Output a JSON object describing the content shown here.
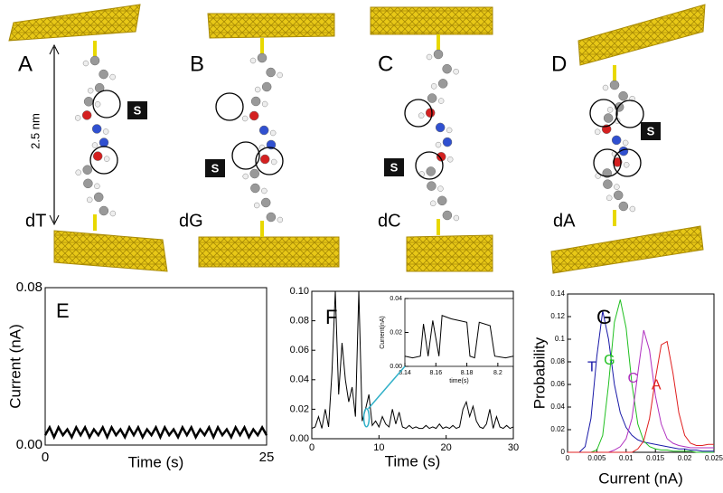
{
  "panels": [
    {
      "label": "A",
      "base": "dT",
      "s_label": "S"
    },
    {
      "label": "B",
      "base": "dG",
      "s_label": "S"
    },
    {
      "label": "C",
      "base": "dC",
      "s_label": "S"
    },
    {
      "label": "D",
      "base": "dA",
      "s_label": "S"
    }
  ],
  "scale_label": "2.5 nm",
  "chart_data": [
    {
      "type": "line",
      "label": "E",
      "xlabel": "Time (s)",
      "ylabel": "Current (nA)",
      "xlim": [
        0,
        25
      ],
      "ylim": [
        0,
        0.08
      ],
      "xticks": [
        0,
        25
      ],
      "yticks": [
        {
          "value": 0,
          "label": "0.00"
        },
        {
          "value": 0.08,
          "label": "0.08"
        }
      ],
      "x": [
        0,
        0.5,
        1,
        1.5,
        2,
        2.5,
        3,
        3.5,
        4,
        4.5,
        5,
        5.5,
        6,
        6.5,
        7,
        7.5,
        8,
        8.5,
        9,
        9.5,
        10,
        10.5,
        11,
        11.5,
        12,
        12.5,
        13,
        13.5,
        14,
        14.5,
        15,
        15.5,
        16,
        16.5,
        17,
        17.5,
        18,
        18.5,
        19,
        19.5,
        20,
        20.5,
        21,
        21.5,
        22,
        22.5,
        23,
        23.5,
        24,
        24.5,
        25
      ],
      "series": [
        {
          "color": "#000000",
          "values": [
            0.005,
            0.009,
            0.004,
            0.009,
            0.005,
            0.008,
            0.004,
            0.009,
            0.005,
            0.009,
            0.004,
            0.008,
            0.005,
            0.009,
            0.004,
            0.009,
            0.005,
            0.008,
            0.004,
            0.009,
            0.005,
            0.009,
            0.004,
            0.008,
            0.005,
            0.009,
            0.004,
            0.009,
            0.005,
            0.008,
            0.004,
            0.009,
            0.005,
            0.009,
            0.004,
            0.008,
            0.005,
            0.009,
            0.004,
            0.009,
            0.005,
            0.008,
            0.004,
            0.009,
            0.005,
            0.009,
            0.004,
            0.008,
            0.005,
            0.009,
            0.005
          ]
        }
      ]
    },
    {
      "type": "line",
      "label": "F",
      "xlabel": "Time (s)",
      "xlim": [
        0,
        30
      ],
      "ylim": [
        0,
        0.1
      ],
      "xticks": [
        0,
        10,
        20,
        30
      ],
      "yticks": [
        {
          "value": 0,
          "label": "0.00"
        },
        {
          "value": 0.02,
          "label": "0.02"
        },
        {
          "value": 0.04,
          "label": "0.04"
        },
        {
          "value": 0.06,
          "label": "0.06"
        },
        {
          "value": 0.08,
          "label": "0.08"
        },
        {
          "value": 0.1,
          "label": "0.10"
        }
      ],
      "x": [
        0,
        0.5,
        1,
        1.5,
        2,
        2.5,
        3,
        3.5,
        4,
        4.5,
        5,
        5.5,
        6,
        6.5,
        7,
        7.5,
        8,
        8.5,
        9,
        9.5,
        10,
        10.5,
        11,
        11.5,
        12,
        12.5,
        13,
        13.5,
        14,
        14.5,
        15,
        15.5,
        16,
        16.5,
        17,
        17.5,
        18,
        18.5,
        19,
        19.5,
        20,
        20.5,
        21,
        21.5,
        22,
        22.5,
        23,
        23.5,
        24,
        24.5,
        25,
        25.5,
        26,
        26.5,
        27,
        27.5,
        28,
        28.5,
        29,
        29.5,
        30
      ],
      "series": [
        {
          "color": "#000000",
          "values": [
            0.007,
            0.008,
            0.015,
            0.007,
            0.02,
            0.008,
            0.045,
            0.1,
            0.03,
            0.065,
            0.04,
            0.025,
            0.035,
            0.015,
            0.1,
            0.012,
            0.02,
            0.03,
            0.009,
            0.012,
            0.008,
            0.015,
            0.01,
            0.008,
            0.02,
            0.01,
            0.018,
            0.008,
            0.007,
            0.009,
            0.007,
            0.008,
            0.007,
            0.007,
            0.009,
            0.007,
            0.008,
            0.007,
            0.01,
            0.007,
            0.008,
            0.007,
            0.009,
            0.007,
            0.008,
            0.02,
            0.025,
            0.015,
            0.022,
            0.012,
            0.008,
            0.007,
            0.01,
            0.02,
            0.007,
            0.015,
            0.008,
            0.007,
            0.009,
            0.007,
            0.008
          ]
        }
      ]
    },
    {
      "type": "line",
      "xlabel": "time(s)",
      "ylabel": "Current(nA)",
      "xlim": [
        8.14,
        8.21
      ],
      "ylim": [
        0,
        0.04
      ],
      "xticks": [
        8.14,
        8.16,
        8.18,
        8.2
      ],
      "yticks": [
        {
          "value": 0,
          "label": "0.00"
        },
        {
          "value": 0.02,
          "label": "0.02"
        },
        {
          "value": 0.04,
          "label": "0.04"
        }
      ],
      "x": [
        8.14,
        8.145,
        8.15,
        8.152,
        8.155,
        8.158,
        8.162,
        8.164,
        8.17,
        8.175,
        8.18,
        8.182,
        8.185,
        8.188,
        8.195,
        8.198,
        8.205,
        8.21
      ],
      "series": [
        {
          "color": "#000000",
          "values": [
            0.006,
            0.005,
            0.006,
            0.025,
            0.006,
            0.027,
            0.006,
            0.03,
            0.028,
            0.027,
            0.026,
            0.006,
            0.005,
            0.026,
            0.024,
            0.006,
            0.005,
            0.006
          ]
        }
      ]
    },
    {
      "type": "line",
      "label": "G",
      "xlabel": "Current (nA)",
      "ylabel": "Probability",
      "xlim": [
        0,
        0.025
      ],
      "ylim": [
        0,
        0.14
      ],
      "xticks": [
        0,
        0.005,
        0.01,
        0.015,
        0.02,
        0.025
      ],
      "yticks": [
        0,
        0.02,
        0.04,
        0.06,
        0.08,
        0.1,
        0.12,
        0.14
      ],
      "x": [
        0,
        0.001,
        0.002,
        0.003,
        0.004,
        0.005,
        0.006,
        0.007,
        0.008,
        0.009,
        0.01,
        0.011,
        0.012,
        0.013,
        0.014,
        0.015,
        0.016,
        0.017,
        0.018,
        0.019,
        0.02,
        0.021,
        0.022,
        0.023,
        0.024,
        0.025
      ],
      "series": [
        {
          "name": "T",
          "color": "#1a1aa8",
          "values": [
            0,
            0,
            0,
            0.005,
            0.03,
            0.085,
            0.125,
            0.1,
            0.06,
            0.035,
            0.022,
            0.015,
            0.011,
            0.009,
            0.008,
            0.007,
            0.006,
            0.005,
            0.004,
            0.003,
            0.003,
            0.002,
            0.002,
            0.001,
            0.001,
            0.001
          ]
        },
        {
          "name": "G",
          "color": "#20c020",
          "values": [
            0,
            0,
            0,
            0,
            0,
            0.002,
            0.015,
            0.06,
            0.115,
            0.135,
            0.11,
            0.06,
            0.025,
            0.01,
            0.005,
            0.003,
            0.002,
            0.002,
            0.001,
            0.001,
            0.001,
            0.001,
            0,
            0,
            0,
            0
          ]
        },
        {
          "name": "C",
          "color": "#b030c0",
          "values": [
            0,
            0,
            0,
            0,
            0,
            0,
            0,
            0,
            0.002,
            0.005,
            0.012,
            0.03,
            0.07,
            0.108,
            0.09,
            0.05,
            0.025,
            0.012,
            0.008,
            0.006,
            0.005,
            0.004,
            0.004,
            0.004,
            0.004,
            0.004
          ]
        },
        {
          "name": "A",
          "color": "#e02020",
          "values": [
            0,
            0,
            0,
            0,
            0,
            0,
            0,
            0,
            0,
            0,
            0,
            0,
            0.003,
            0.01,
            0.03,
            0.065,
            0.095,
            0.098,
            0.07,
            0.035,
            0.015,
            0.008,
            0.006,
            0.006,
            0.007,
            0.007
          ]
        }
      ]
    }
  ]
}
